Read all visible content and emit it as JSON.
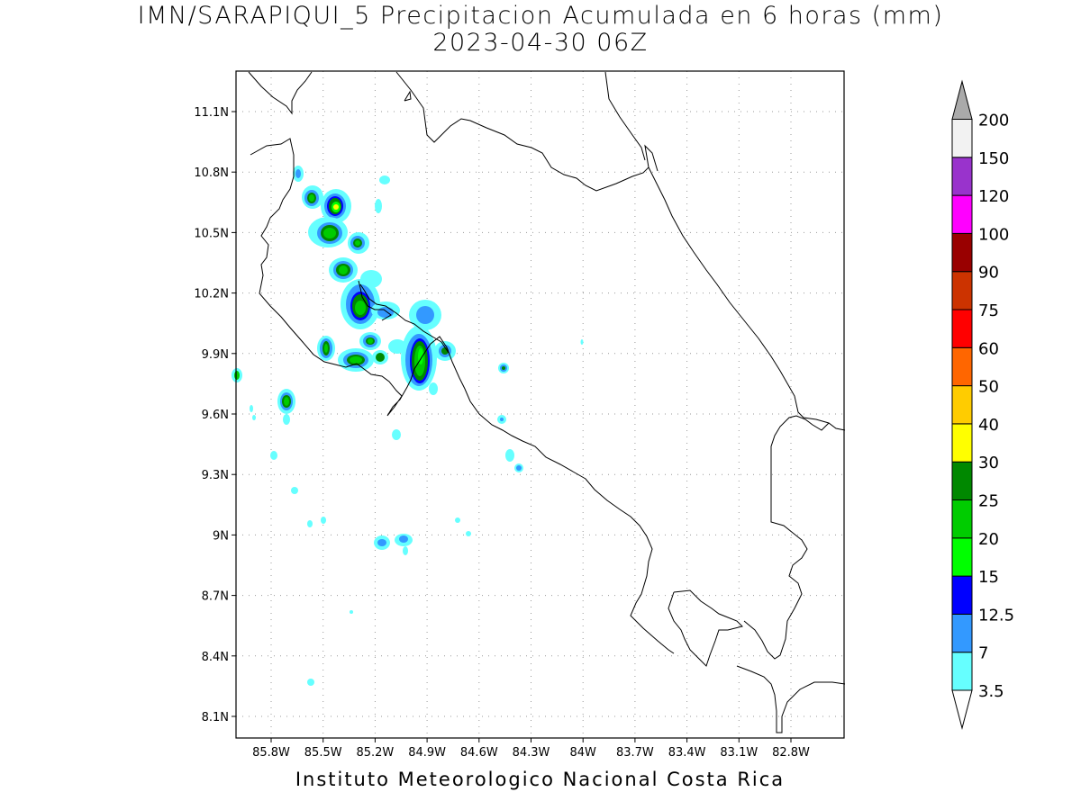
{
  "title": {
    "line1": "IMN/SARAPIQUI_5 Precipitacion Acumulada en 6 horas (mm)",
    "line2": "2023-04-30 06Z"
  },
  "footer": "Instituto Meteorologico Nacional Costa Rica",
  "map": {
    "lat_ticks": [
      "11.1N",
      "10.8N",
      "10.5N",
      "10.2N",
      "9.9N",
      "9.6N",
      "9.3N",
      "9N",
      "8.7N",
      "8.4N",
      "8.1N"
    ],
    "lon_ticks": [
      "85.8W",
      "85.5W",
      "85.2W",
      "84.9W",
      "84.6W",
      "84.3W",
      "84W",
      "83.7W",
      "83.4W",
      "83.1W",
      "82.8W"
    ],
    "gridlines": "dotted",
    "coastline_color": "#000000"
  },
  "legend": {
    "levels": [
      "3.5",
      "7",
      "12.5",
      "15",
      "20",
      "25",
      "30",
      "40",
      "50",
      "60",
      "75",
      "90",
      "100",
      "120",
      "150",
      "200"
    ],
    "colors": [
      "#66ffff",
      "#3399ff",
      "#0000ff",
      "#00ff00",
      "#00cc00",
      "#008800",
      "#ffff00",
      "#ffcc00",
      "#ff6600",
      "#ff0000",
      "#cc3300",
      "#990000",
      "#ff00ff",
      "#9933cc",
      "#f2f2f2",
      "#aaaaaa"
    ]
  }
}
